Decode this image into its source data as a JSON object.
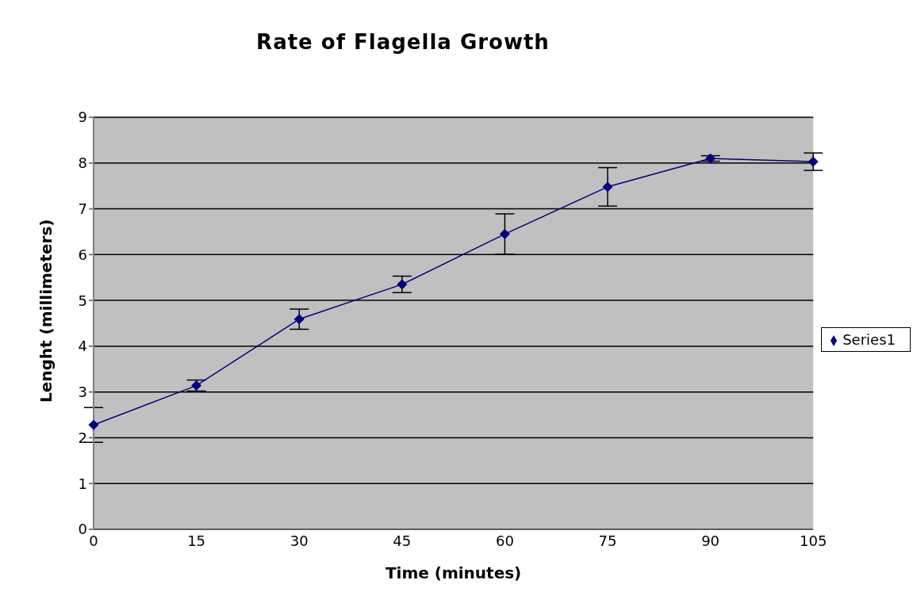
{
  "chart_data": {
    "type": "line",
    "title": "Rate of Flagella Growth",
    "xlabel": "Time (minutes)",
    "ylabel": "Lenght (millimeters)",
    "categories": [
      "0",
      "15",
      "30",
      "45",
      "60",
      "75",
      "90",
      "105"
    ],
    "series": [
      {
        "name": "Series1",
        "color": "#000080",
        "values": [
          2.28,
          3.14,
          4.59,
          5.35,
          6.45,
          7.48,
          8.1,
          8.03
        ],
        "errors": [
          0.38,
          0.12,
          0.22,
          0.18,
          0.44,
          0.42,
          0.06,
          0.19
        ]
      }
    ],
    "ylim": [
      0,
      9
    ],
    "yticks": [
      0,
      1,
      2,
      3,
      4,
      5,
      6,
      7,
      8,
      9
    ],
    "grid": "y",
    "legend": "right",
    "marker": "diamond",
    "line_style": "solid"
  }
}
